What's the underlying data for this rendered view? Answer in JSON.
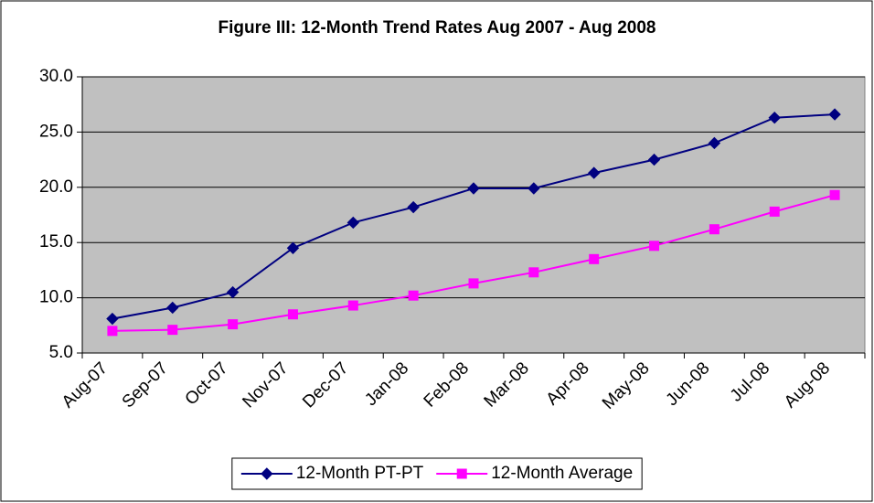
{
  "chart_data": {
    "type": "line",
    "title": "Figure III: 12-Month Trend Rates Aug 2007 - Aug 2008",
    "categories": [
      "Aug-07",
      "Sep-07",
      "Oct-07",
      "Nov-07",
      "Dec-07",
      "Jan-08",
      "Feb-08",
      "Mar-08",
      "Apr-08",
      "May-08",
      "Jun-08",
      "Jul-08",
      "Aug-08"
    ],
    "series": [
      {
        "name": "12-Month PT-PT",
        "color": "#000080",
        "marker": "diamond",
        "values": [
          8.1,
          9.1,
          10.5,
          14.5,
          16.8,
          18.2,
          19.9,
          19.9,
          21.3,
          22.5,
          24.0,
          26.3,
          26.6
        ]
      },
      {
        "name": "12-Month Average",
        "color": "#ff00ff",
        "marker": "square",
        "values": [
          7.0,
          7.1,
          7.6,
          8.5,
          9.3,
          10.2,
          11.3,
          12.3,
          13.5,
          14.7,
          16.2,
          17.8,
          19.3
        ]
      }
    ],
    "ylim": [
      5,
      30
    ],
    "yticks": [
      {
        "value": 5,
        "label": "5.0"
      },
      {
        "value": 10,
        "label": "10.0"
      },
      {
        "value": 15,
        "label": "15.0"
      },
      {
        "value": 20,
        "label": "20.0"
      },
      {
        "value": 25,
        "label": "25.0"
      },
      {
        "value": 30,
        "label": "30.0"
      }
    ],
    "grid": true,
    "legend": "bottom"
  }
}
